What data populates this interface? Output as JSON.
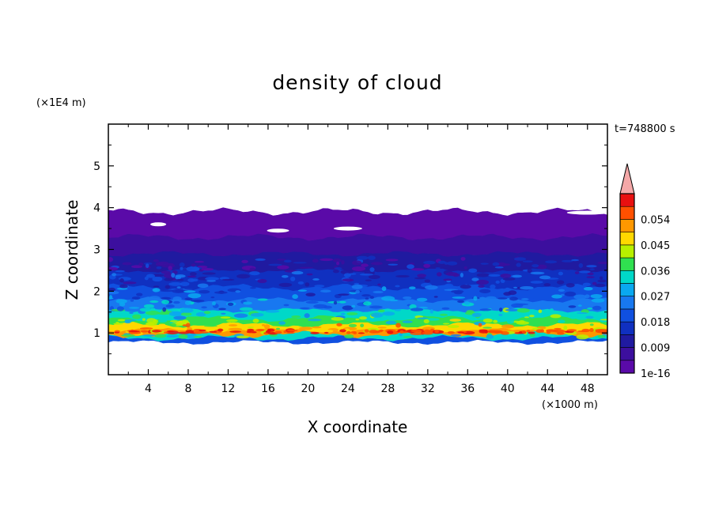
{
  "chart_data": {
    "type": "heatmap",
    "title": "density of cloud",
    "time_label": "t=748800 s",
    "xlabel": "X coordinate",
    "ylabel": "Z coordinate",
    "x_unit": "(×1000 m)",
    "y_unit": "(×1E4 m)",
    "xlim": [
      0,
      50
    ],
    "ylim": [
      0,
      6
    ],
    "x_ticks": [
      4,
      8,
      12,
      16,
      20,
      24,
      28,
      32,
      36,
      40,
      44,
      48
    ],
    "y_ticks": [
      1,
      2,
      3,
      4,
      5
    ],
    "colorbar": {
      "min_label": "1e-16",
      "tick_labels": [
        "0.009",
        "0.018",
        "0.027",
        "0.036",
        "0.045",
        "0.054"
      ],
      "levels": 13,
      "colors": [
        "#5a0aa8",
        "#3c0f9e",
        "#201aa0",
        "#1030c0",
        "#1050e0",
        "#1878f0",
        "#0aa8f0",
        "#00d8c8",
        "#30e050",
        "#b8f000",
        "#ffd800",
        "#ff9800",
        "#ff5000",
        "#e81010"
      ],
      "overflow_color": "#f4a8a8"
    },
    "profile": [
      {
        "z": 0.78,
        "level": 4
      },
      {
        "z": 0.88,
        "level": 7
      },
      {
        "z": 0.97,
        "level": 11
      },
      {
        "z": 1.07,
        "level": 10
      },
      {
        "z": 1.2,
        "level": 8
      },
      {
        "z": 1.35,
        "level": 7
      },
      {
        "z": 1.55,
        "level": 5
      },
      {
        "z": 1.8,
        "level": 4
      },
      {
        "z": 2.1,
        "level": 3
      },
      {
        "z": 2.5,
        "level": 2
      },
      {
        "z": 2.9,
        "level": 1
      },
      {
        "z": 3.3,
        "level": 0
      },
      {
        "z": 3.9,
        "level": 0
      }
    ]
  }
}
